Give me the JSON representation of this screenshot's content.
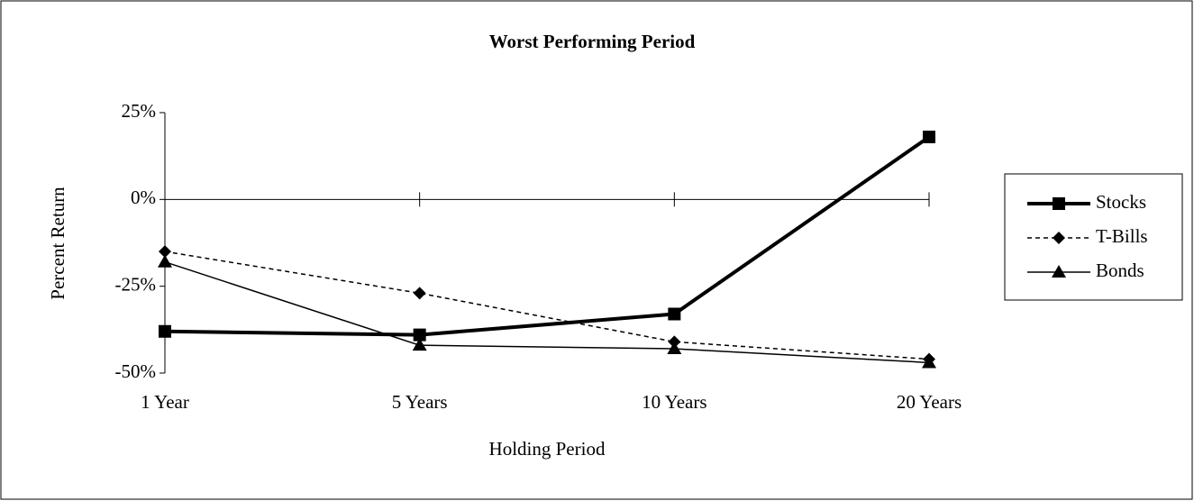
{
  "chart_data": {
    "type": "line",
    "title": "Worst Performing Period",
    "x_label": "Holding Period",
    "y_label": "Percent Return",
    "categories": [
      "1 Year",
      "5 Years",
      "10 Years",
      "20 Years"
    ],
    "series": [
      {
        "name": "Stocks",
        "color": "#000000",
        "values": [
          -38,
          -39,
          -33,
          18
        ]
      },
      {
        "name": "T-Bills",
        "color": "#000000",
        "values": [
          -15,
          -27,
          -41,
          -46
        ]
      },
      {
        "name": "Bonds",
        "color": "#000000",
        "values": [
          -18,
          -42,
          -43,
          -47
        ]
      }
    ],
    "ylim": [
      -50,
      25
    ],
    "yticks": [
      {
        "value": -50,
        "label": "-50%"
      },
      {
        "value": -25,
        "label": "-25%"
      },
      {
        "value": 0,
        "label": "0%"
      },
      {
        "value": 25,
        "label": "25%"
      }
    ],
    "grid": false,
    "legend": "right"
  }
}
